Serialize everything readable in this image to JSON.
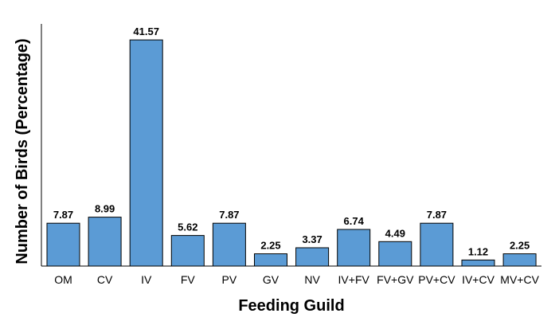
{
  "chart_data": {
    "type": "bar",
    "title": "",
    "xlabel": "Feeding Guild",
    "ylabel": "Number of Birds (Percentage)",
    "categories": [
      "OM",
      "CV",
      "IV",
      "FV",
      "PV",
      "GV",
      "NV",
      "IV+FV",
      "FV+GV",
      "PV+CV",
      "IV+CV",
      "MV+CV"
    ],
    "values": [
      7.87,
      8.99,
      41.57,
      5.62,
      7.87,
      2.25,
      3.37,
      6.74,
      4.49,
      7.87,
      1.12,
      2.25
    ],
    "value_labels": [
      "7.87",
      "8.99",
      "41.57",
      "5.62",
      "7.87",
      "2.25",
      "3.37",
      "6.74",
      "4.49",
      "7.87",
      "1.12",
      "2.25"
    ],
    "ylim": [
      0,
      42
    ],
    "grid": false,
    "legend": "none",
    "bar_color": "#5b9bd5"
  }
}
